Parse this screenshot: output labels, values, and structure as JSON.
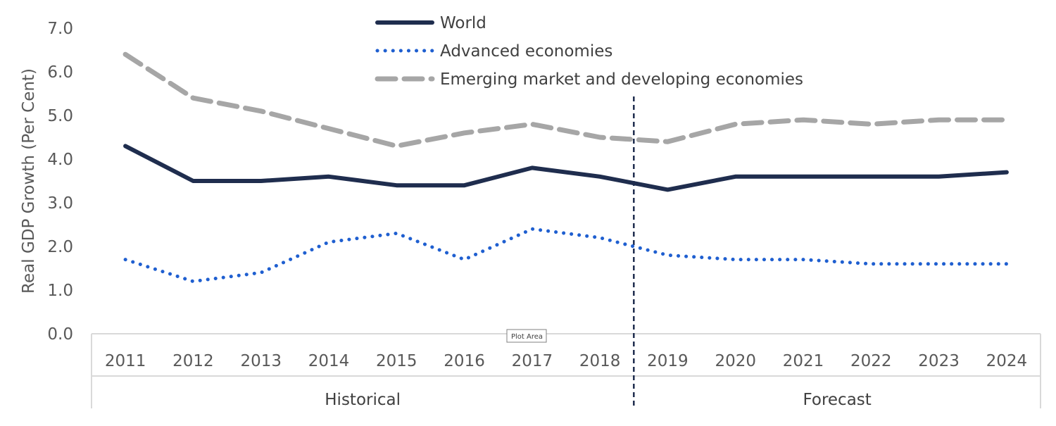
{
  "chart_data": {
    "type": "line",
    "ylabel": "Real GDP Growth (Per Cent)",
    "xlabel": "",
    "ylim": [
      0,
      7
    ],
    "yticks": [
      "0.0",
      "1.0",
      "2.0",
      "3.0",
      "4.0",
      "5.0",
      "6.0",
      "7.0"
    ],
    "categories": [
      "2011",
      "2012",
      "2013",
      "2014",
      "2015",
      "2016",
      "2017",
      "2018",
      "2019",
      "2020",
      "2021",
      "2022",
      "2023",
      "2024"
    ],
    "groups": [
      {
        "label": "Historical",
        "from": "2011",
        "to": "2018"
      },
      {
        "label": "Forecast",
        "from": "2019",
        "to": "2024"
      }
    ],
    "series": [
      {
        "name": "World",
        "style": "solid",
        "color": "#1f2d4e",
        "values": [
          4.3,
          3.5,
          3.5,
          3.6,
          3.4,
          3.4,
          3.8,
          3.6,
          3.3,
          3.6,
          3.6,
          3.6,
          3.6,
          3.7
        ]
      },
      {
        "name": "Advanced economies",
        "style": "dotted",
        "color": "#1f5fd0",
        "values": [
          1.7,
          1.2,
          1.4,
          2.1,
          2.3,
          1.7,
          2.4,
          2.2,
          1.8,
          1.7,
          1.7,
          1.6,
          1.6,
          1.6
        ]
      },
      {
        "name": "Emerging market and developing economies",
        "style": "dashed",
        "color": "#a6a6a6",
        "values": [
          6.4,
          5.4,
          5.1,
          4.7,
          4.3,
          4.6,
          4.8,
          4.5,
          4.4,
          4.8,
          4.9,
          4.8,
          4.9,
          4.9
        ]
      }
    ],
    "divider_color": "#1f2d4e",
    "legend_position": "top-center",
    "grid": false
  },
  "tooltip": "Plot Area"
}
